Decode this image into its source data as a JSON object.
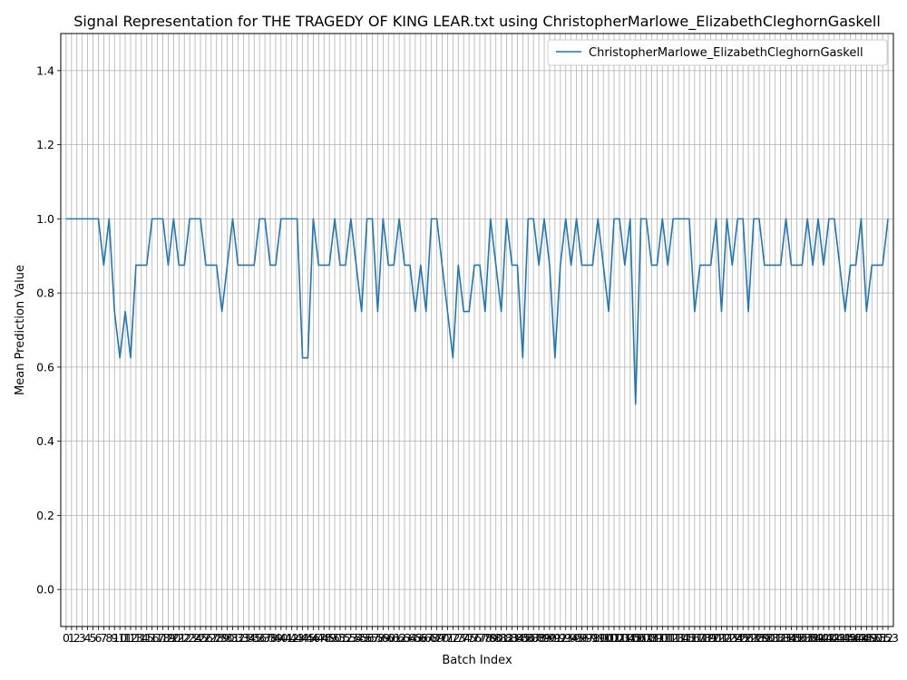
{
  "chart_data": {
    "type": "line",
    "title": "Signal Representation for THE TRAGEDY OF KING LEAR.txt using ChristopherMarlowe_ElizabethCleghornGaskell",
    "xlabel": "Batch Index",
    "ylabel": "Mean Prediction Value",
    "ylim": [
      -0.1,
      1.5
    ],
    "xlim": [
      -1,
      154
    ],
    "yticks": [
      0.0,
      0.2,
      0.4,
      0.6,
      0.8,
      1.0,
      1.2,
      1.4
    ],
    "ytick_labels": [
      "0.0",
      "0.2",
      "0.4",
      "0.6",
      "0.8",
      "1.0",
      "1.2",
      "1.4"
    ],
    "grid": true,
    "legend_position": "top-right",
    "line_color": "#1f77b4",
    "x": [
      0,
      1,
      2,
      3,
      4,
      5,
      6,
      7,
      8,
      9,
      10,
      11,
      12,
      13,
      14,
      15,
      16,
      17,
      18,
      19,
      20,
      21,
      22,
      23,
      24,
      25,
      26,
      27,
      28,
      29,
      30,
      31,
      32,
      33,
      34,
      35,
      36,
      37,
      38,
      39,
      40,
      41,
      42,
      43,
      44,
      45,
      46,
      47,
      48,
      49,
      50,
      51,
      52,
      53,
      54,
      55,
      56,
      57,
      58,
      59,
      60,
      61,
      62,
      63,
      64,
      65,
      66,
      67,
      68,
      69,
      70,
      71,
      72,
      73,
      74,
      75,
      76,
      77,
      78,
      79,
      80,
      81,
      82,
      83,
      84,
      85,
      86,
      87,
      88,
      89,
      90,
      91,
      92,
      93,
      94,
      95,
      96,
      97,
      98,
      99,
      100,
      101,
      102,
      103,
      104,
      105,
      106,
      107,
      108,
      109,
      110,
      111,
      112,
      113,
      114,
      115,
      116,
      117,
      118,
      119,
      120,
      121,
      122,
      123,
      124,
      125,
      126,
      127,
      128,
      129,
      130,
      131,
      132,
      133,
      134,
      135,
      136,
      137,
      138,
      139,
      140,
      141,
      142,
      143,
      144,
      145,
      146,
      147,
      148,
      149,
      150,
      151,
      152,
      153
    ],
    "series": [
      {
        "name": "ChristopherMarlowe_ElizabethCleghornGaskell",
        "values": [
          1.0,
          1.0,
          1.0,
          1.0,
          1.0,
          1.0,
          1.0,
          0.875,
          1.0,
          0.75,
          0.625,
          0.75,
          0.625,
          0.875,
          0.875,
          0.875,
          1.0,
          1.0,
          1.0,
          0.875,
          1.0,
          0.875,
          0.875,
          1.0,
          1.0,
          1.0,
          0.875,
          0.875,
          0.875,
          0.75,
          0.875,
          1.0,
          0.875,
          0.875,
          0.875,
          0.875,
          1.0,
          1.0,
          0.875,
          0.875,
          1.0,
          1.0,
          1.0,
          1.0,
          0.625,
          0.625,
          1.0,
          0.875,
          0.875,
          0.875,
          1.0,
          0.875,
          0.875,
          1.0,
          0.875,
          0.75,
          1.0,
          1.0,
          0.75,
          1.0,
          0.875,
          0.875,
          1.0,
          0.875,
          0.875,
          0.75,
          0.875,
          0.75,
          1.0,
          1.0,
          0.875,
          0.75,
          0.625,
          0.875,
          0.75,
          0.75,
          0.875,
          0.875,
          0.75,
          1.0,
          0.875,
          0.75,
          1.0,
          0.875,
          0.875,
          0.625,
          1.0,
          1.0,
          0.875,
          1.0,
          0.875,
          0.625,
          0.875,
          1.0,
          0.875,
          1.0,
          0.875,
          0.875,
          0.875,
          1.0,
          0.875,
          0.75,
          1.0,
          1.0,
          0.875,
          1.0,
          0.5,
          1.0,
          1.0,
          0.875,
          0.875,
          1.0,
          0.875,
          1.0,
          1.0,
          1.0,
          1.0,
          0.75,
          0.875,
          0.875,
          0.875,
          1.0,
          0.75,
          1.0,
          0.875,
          1.0,
          1.0,
          0.75,
          1.0,
          1.0,
          0.875,
          0.875,
          0.875,
          0.875,
          1.0,
          0.875,
          0.875,
          0.875,
          1.0,
          0.875,
          1.0,
          0.875,
          1.0,
          1.0,
          0.875,
          0.75,
          0.875,
          0.875,
          1.0,
          0.75,
          0.875,
          0.875,
          0.875,
          1.0
        ]
      }
    ]
  }
}
